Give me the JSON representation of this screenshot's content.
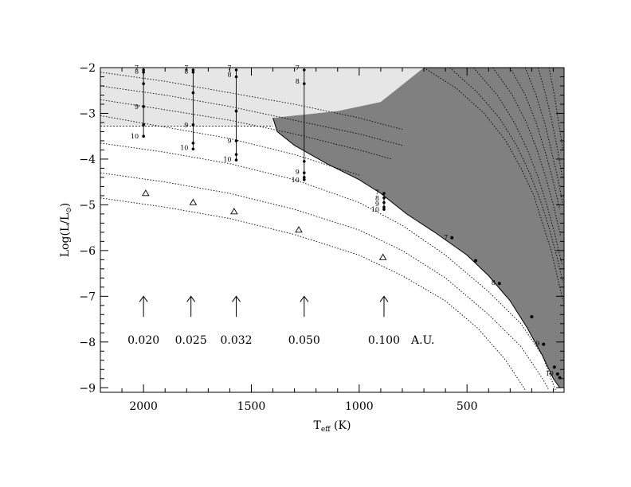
{
  "chart_data": {
    "type": "line",
    "title": "",
    "xlabel": "T_eff (K)",
    "ylabel": "Log(L/L_sun)",
    "xlim": [
      2200,
      50
    ],
    "ylim": [
      -9.1,
      -2
    ],
    "x_reversed": true,
    "x_ticks": [
      2000,
      1500,
      1000,
      500
    ],
    "y_ticks": [
      -2,
      -3,
      -4,
      -5,
      -6,
      -7,
      -8,
      -9
    ],
    "x_tick_labels": [
      "2000",
      "1500",
      "1000",
      "500"
    ],
    "y_tick_labels": [
      "−2",
      "−3",
      "−4",
      "−5",
      "−6",
      "−7",
      "−8",
      "−9"
    ],
    "grid": false,
    "colors": {
      "light_region": "#e6e6e6",
      "dark_region": "#808080",
      "lines": "#000000"
    },
    "regions": [
      {
        "shade": "light",
        "points": [
          [
            2200,
            -2.0
          ],
          [
            700,
            -2.0
          ],
          [
            900,
            -2.75
          ],
          [
            1100,
            -2.95
          ],
          [
            1300,
            -3.05
          ],
          [
            1400,
            -3.1
          ],
          [
            1400,
            -3.28
          ],
          [
            2200,
            -3.28
          ]
        ]
      },
      {
        "shade": "dark",
        "points": [
          [
            700,
            -2.0
          ],
          [
            900,
            -2.75
          ],
          [
            1100,
            -2.95
          ],
          [
            1300,
            -3.05
          ],
          [
            1400,
            -3.1
          ],
          [
            1380,
            -3.4
          ],
          [
            1300,
            -3.7
          ],
          [
            1150,
            -4.1
          ],
          [
            1000,
            -4.45
          ],
          [
            900,
            -4.75
          ],
          [
            780,
            -5.2
          ],
          [
            650,
            -5.6
          ],
          [
            500,
            -6.1
          ],
          [
            400,
            -6.55
          ],
          [
            300,
            -7.1
          ],
          [
            220,
            -7.7
          ],
          [
            150,
            -8.3
          ],
          [
            100,
            -8.8
          ],
          [
            70,
            -9.0
          ],
          [
            50,
            -9.0
          ],
          [
            50,
            -2.0
          ]
        ]
      }
    ],
    "dotted_curves": [
      {
        "points": [
          [
            2200,
            -2.1
          ],
          [
            1900,
            -2.3
          ],
          [
            1600,
            -2.55
          ],
          [
            1300,
            -2.8
          ],
          [
            1000,
            -3.1
          ],
          [
            800,
            -3.35
          ]
        ]
      },
      {
        "points": [
          [
            2200,
            -2.4
          ],
          [
            1900,
            -2.6
          ],
          [
            1600,
            -2.85
          ],
          [
            1300,
            -3.15
          ],
          [
            1000,
            -3.45
          ],
          [
            800,
            -3.7
          ]
        ]
      },
      {
        "points": [
          [
            2200,
            -2.7
          ],
          [
            1900,
            -2.92
          ],
          [
            1600,
            -3.15
          ],
          [
            1300,
            -3.45
          ],
          [
            1000,
            -3.8
          ],
          [
            850,
            -4.0
          ]
        ]
      },
      {
        "points": [
          [
            2200,
            -3.05
          ],
          [
            1900,
            -3.3
          ],
          [
            1600,
            -3.55
          ],
          [
            1300,
            -3.9
          ],
          [
            1000,
            -4.35
          ]
        ]
      },
      {
        "points": [
          [
            2200,
            -3.65
          ],
          [
            1900,
            -3.85
          ],
          [
            1600,
            -4.1
          ],
          [
            1300,
            -4.45
          ],
          [
            1000,
            -4.95
          ],
          [
            800,
            -5.45
          ],
          [
            600,
            -6.1
          ],
          [
            400,
            -6.9
          ],
          [
            250,
            -7.6
          ],
          [
            150,
            -8.3
          ],
          [
            90,
            -9.05
          ]
        ]
      },
      {
        "points": [
          [
            2200,
            -4.3
          ],
          [
            1900,
            -4.5
          ],
          [
            1600,
            -4.75
          ],
          [
            1300,
            -5.1
          ],
          [
            1000,
            -5.55
          ],
          [
            800,
            -6.0
          ],
          [
            600,
            -6.6
          ],
          [
            400,
            -7.4
          ],
          [
            250,
            -8.1
          ],
          [
            150,
            -8.8
          ],
          [
            120,
            -9.05
          ]
        ]
      },
      {
        "points": [
          [
            2200,
            -4.85
          ],
          [
            1900,
            -5.05
          ],
          [
            1600,
            -5.3
          ],
          [
            1300,
            -5.65
          ],
          [
            1000,
            -6.1
          ],
          [
            800,
            -6.55
          ],
          [
            600,
            -7.1
          ],
          [
            450,
            -7.7
          ],
          [
            320,
            -8.4
          ],
          [
            230,
            -9.05
          ]
        ]
      },
      {
        "points": [
          [
            700,
            -2.0
          ],
          [
            550,
            -2.45
          ],
          [
            420,
            -3.0
          ],
          [
            320,
            -3.6
          ],
          [
            250,
            -4.2
          ],
          [
            190,
            -4.8
          ],
          [
            150,
            -5.4
          ],
          [
            110,
            -6.0
          ],
          [
            80,
            -6.6
          ],
          [
            55,
            -7.1
          ]
        ]
      },
      {
        "points": [
          [
            580,
            -2.0
          ],
          [
            450,
            -2.55
          ],
          [
            350,
            -3.1
          ],
          [
            270,
            -3.7
          ],
          [
            210,
            -4.3
          ],
          [
            160,
            -4.9
          ],
          [
            120,
            -5.5
          ],
          [
            85,
            -6.1
          ],
          [
            55,
            -6.7
          ]
        ]
      },
      {
        "points": [
          [
            470,
            -2.0
          ],
          [
            360,
            -2.6
          ],
          [
            280,
            -3.2
          ],
          [
            220,
            -3.8
          ],
          [
            170,
            -4.4
          ],
          [
            130,
            -5.0
          ],
          [
            95,
            -5.6
          ],
          [
            60,
            -6.3
          ]
        ]
      },
      {
        "points": [
          [
            380,
            -2.0
          ],
          [
            290,
            -2.6
          ],
          [
            225,
            -3.2
          ],
          [
            175,
            -3.8
          ],
          [
            135,
            -4.4
          ],
          [
            100,
            -5.0
          ],
          [
            65,
            -5.7
          ]
        ]
      },
      {
        "points": [
          [
            300,
            -2.0
          ],
          [
            230,
            -2.6
          ],
          [
            180,
            -3.2
          ],
          [
            140,
            -3.8
          ],
          [
            105,
            -4.4
          ],
          [
            70,
            -5.1
          ]
        ]
      },
      {
        "points": [
          [
            230,
            -2.0
          ],
          [
            180,
            -2.6
          ],
          [
            140,
            -3.2
          ],
          [
            110,
            -3.8
          ],
          [
            80,
            -4.4
          ],
          [
            55,
            -5.0
          ]
        ]
      },
      {
        "points": [
          [
            170,
            -2.0
          ],
          [
            135,
            -2.6
          ],
          [
            105,
            -3.2
          ],
          [
            80,
            -3.8
          ],
          [
            58,
            -4.4
          ]
        ]
      },
      {
        "points": [
          [
            120,
            -2.0
          ],
          [
            95,
            -2.6
          ],
          [
            75,
            -3.2
          ],
          [
            55,
            -3.8
          ]
        ]
      }
    ],
    "dash_curve": {
      "points": [
        [
          2200,
          -3.28
        ],
        [
          1400,
          -3.28
        ]
      ]
    },
    "envelope_curve": {
      "points": [
        [
          1400,
          -3.1
        ],
        [
          1380,
          -3.4
        ],
        [
          1300,
          -3.7
        ],
        [
          1150,
          -4.1
        ],
        [
          1000,
          -4.45
        ],
        [
          900,
          -4.75
        ],
        [
          780,
          -5.2
        ],
        [
          650,
          -5.6
        ],
        [
          500,
          -6.1
        ],
        [
          400,
          -6.55
        ],
        [
          300,
          -7.1
        ],
        [
          220,
          -7.7
        ],
        [
          150,
          -8.3
        ],
        [
          100,
          -8.8
        ],
        [
          70,
          -9.0
        ]
      ]
    },
    "tracks": [
      {
        "x": 2000,
        "points": [
          -2.05,
          -2.1,
          -2.35,
          -2.85,
          -3.25,
          -3.5
        ],
        "labels": [
          {
            "text": "7",
            "y": -2.0
          },
          {
            "text": "8",
            "y": -2.08
          },
          {
            "text": "9",
            "y": -2.85
          },
          {
            "text": "10",
            "y": -3.5
          }
        ]
      },
      {
        "x": 1770,
        "points": [
          -2.05,
          -2.1,
          -2.55,
          -3.25,
          -3.65,
          -3.78
        ],
        "labels": [
          {
            "text": "7",
            "y": -2.0
          },
          {
            "text": "8",
            "y": -2.08
          },
          {
            "text": "9",
            "y": -3.25
          },
          {
            "text": "10",
            "y": -3.75
          }
        ]
      },
      {
        "x": 1570,
        "points": [
          -2.05,
          -2.2,
          -2.95,
          -3.6,
          -3.9,
          -4.02
        ],
        "labels": [
          {
            "text": "7",
            "y": -2.0
          },
          {
            "text": "8",
            "y": -2.15
          },
          {
            "text": "9",
            "y": -3.6
          },
          {
            "text": "10",
            "y": -4.0
          }
        ]
      },
      {
        "x": 1255,
        "points": [
          -2.05,
          -2.35,
          -4.05,
          -4.3,
          -4.4,
          -4.45
        ],
        "labels": [
          {
            "text": "7",
            "y": -2.0
          },
          {
            "text": "8",
            "y": -2.3
          },
          {
            "text": "9",
            "y": -4.28
          },
          {
            "text": "10",
            "y": -4.45
          }
        ]
      },
      {
        "x": 885,
        "points": [
          -4.75,
          -4.85,
          -4.95,
          -5.05,
          -5.1
        ],
        "labels": [
          {
            "text": "7",
            "y": -4.72
          },
          {
            "text": "8",
            "y": -4.85
          },
          {
            "text": "9",
            "y": -4.98
          },
          {
            "text": "10",
            "y": -5.1
          }
        ]
      },
      {
        "x": 120,
        "points": [],
        "labels": []
      }
    ],
    "cooling_points": [
      {
        "x": 570,
        "y": -5.72,
        "label": "7"
      },
      {
        "x": 460,
        "y": -6.22,
        "label": ""
      },
      {
        "x": 350,
        "y": -6.72,
        "label": "8"
      },
      {
        "x": 200,
        "y": -7.45,
        "label": ""
      },
      {
        "x": 145,
        "y": -8.05,
        "label": "9"
      },
      {
        "x": 95,
        "y": -8.55,
        "label": ""
      },
      {
        "x": 80,
        "y": -8.7,
        "label": "10"
      },
      {
        "x": 70,
        "y": -8.78,
        "label": ""
      }
    ],
    "triangles": [
      {
        "x": 1990,
        "y": -4.75
      },
      {
        "x": 1770,
        "y": -4.95
      },
      {
        "x": 1580,
        "y": -5.15
      },
      {
        "x": 1280,
        "y": -5.55
      },
      {
        "x": 890,
        "y": -6.15
      }
    ],
    "separation_markers": [
      {
        "x": 2000,
        "label": "0.020"
      },
      {
        "x": 1780,
        "label": "0.025"
      },
      {
        "x": 1570,
        "label": "0.032"
      },
      {
        "x": 1255,
        "label": "0.050"
      },
      {
        "x": 885,
        "label": "0.100"
      }
    ],
    "separation_unit": "A.U."
  }
}
